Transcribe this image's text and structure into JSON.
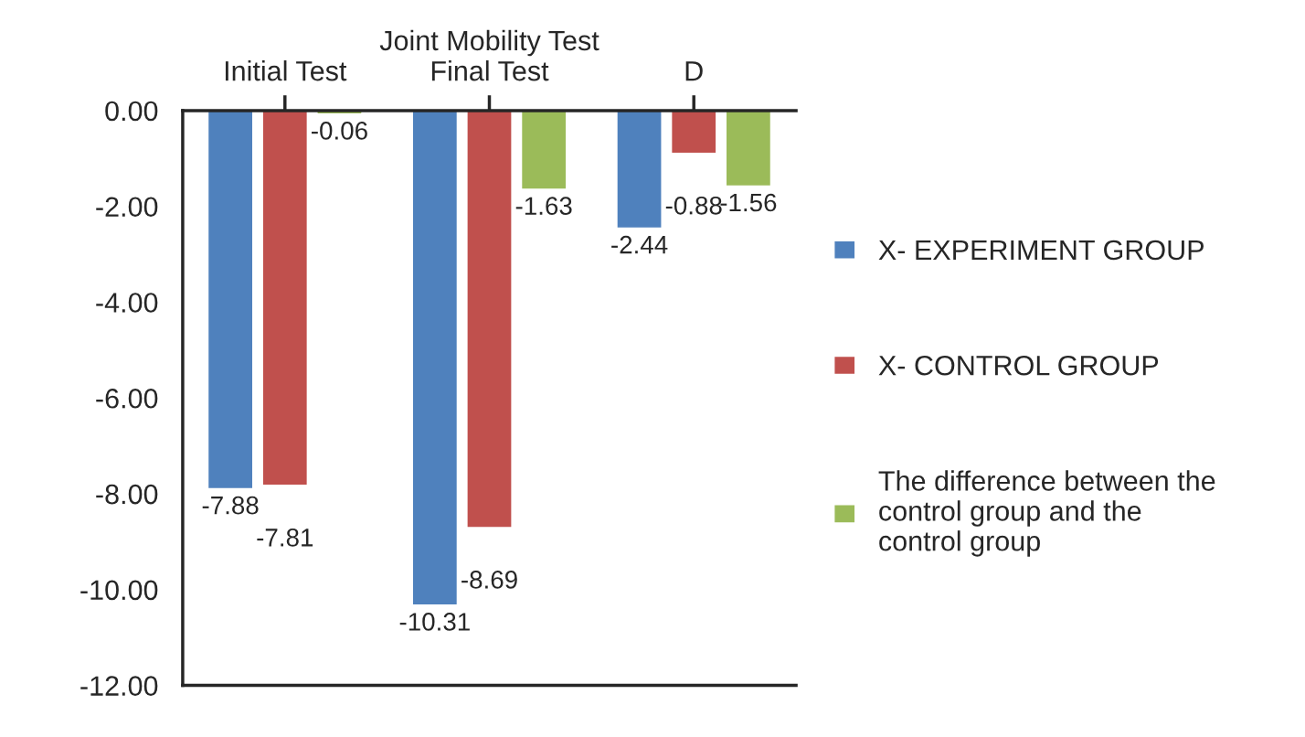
{
  "chart_data": {
    "type": "bar",
    "xlabel": "Joint Mobility Test",
    "categories": [
      "Initial Test",
      "Final Test",
      "D"
    ],
    "series": [
      {
        "name": "X- EXPERIMENT GROUP",
        "color": "#4f81bd",
        "values": [
          -7.88,
          -10.31,
          -2.44
        ]
      },
      {
        "name": "X- CONTROL GROUP",
        "color": "#c0504d",
        "values": [
          -7.81,
          -8.69,
          -0.88
        ]
      },
      {
        "name": "The difference between the control group and the control group",
        "color": "#9bbb59",
        "values": [
          -0.06,
          -1.63,
          -1.56
        ]
      }
    ],
    "ylim": [
      -12,
      0
    ],
    "yticks": [
      {
        "value": 0,
        "label": "0.00"
      },
      {
        "value": -2,
        "label": "-2.00"
      },
      {
        "value": -4,
        "label": "-4.00"
      },
      {
        "value": -6,
        "label": "-6.00"
      },
      {
        "value": -8,
        "label": "-8.00"
      },
      {
        "value": -10,
        "label": "-10.00"
      },
      {
        "value": -12,
        "label": "-12.00"
      }
    ],
    "data_labels": true,
    "grid": false,
    "legend": "right"
  }
}
